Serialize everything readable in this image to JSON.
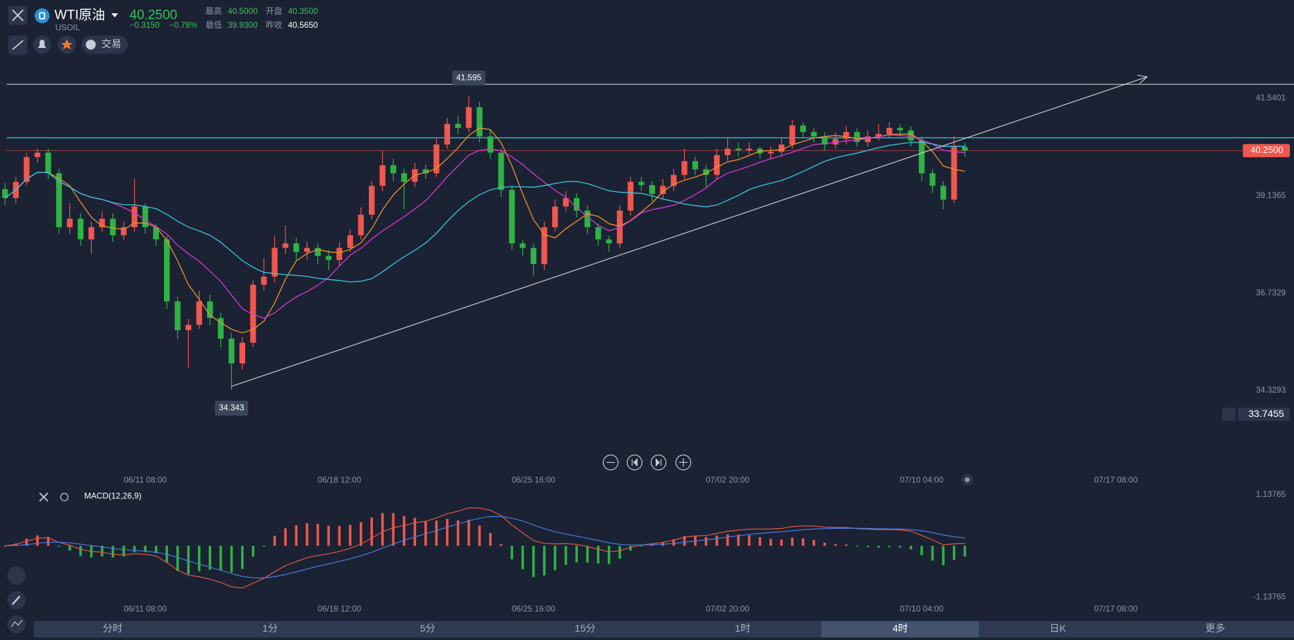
{
  "header": {
    "name": "WTI原油",
    "symbol": "USOIL",
    "price": "40.2500",
    "change": "−0.3150",
    "change_pct": "−0.78%",
    "stats": [
      {
        "label": "最高",
        "value": "40.5000"
      },
      {
        "label": "开盘",
        "value": "40.3500"
      },
      {
        "label": "最低",
        "value": "39.9300"
      },
      {
        "label": "昨收",
        "value": "40.5650"
      }
    ],
    "trade": "交易",
    "tabs": [
      "分时",
      "1分",
      "5分",
      "15分",
      "1时",
      "4时",
      "日K",
      "更多"
    ],
    "active_tab": 5
  },
  "chart_data": {
    "type": "candlestick",
    "candles": [
      [
        39.3,
        39.45,
        38.9,
        39.08
      ],
      [
        39.08,
        39.6,
        38.95,
        39.48
      ],
      [
        39.48,
        40.2,
        39.4,
        40.09
      ],
      [
        40.09,
        40.3,
        39.95,
        40.2
      ],
      [
        40.2,
        40.3,
        39.55,
        39.69
      ],
      [
        39.69,
        39.8,
        38.2,
        38.36
      ],
      [
        38.36,
        38.95,
        38.2,
        38.57
      ],
      [
        38.57,
        38.7,
        37.9,
        38.06
      ],
      [
        38.06,
        38.5,
        37.7,
        38.36
      ],
      [
        38.36,
        38.75,
        38.25,
        38.57
      ],
      [
        38.57,
        38.7,
        38.0,
        38.16
      ],
      [
        38.16,
        38.5,
        38.05,
        38.36
      ],
      [
        38.36,
        39.55,
        38.25,
        38.87
      ],
      [
        38.87,
        38.95,
        38.2,
        38.36
      ],
      [
        38.36,
        38.45,
        37.9,
        38.06
      ],
      [
        38.06,
        38.15,
        36.35,
        36.53
      ],
      [
        36.53,
        36.65,
        35.6,
        35.82
      ],
      [
        35.82,
        36.1,
        34.9,
        35.95
      ],
      [
        35.95,
        36.8,
        35.85,
        36.53
      ],
      [
        36.53,
        36.7,
        35.95,
        36.12
      ],
      [
        36.12,
        36.25,
        35.4,
        35.61
      ],
      [
        35.61,
        35.75,
        34.343,
        35.0
      ],
      [
        35.0,
        35.65,
        34.85,
        35.51
      ],
      [
        35.51,
        37.05,
        35.4,
        36.94
      ],
      [
        36.94,
        37.6,
        36.8,
        37.14
      ],
      [
        37.14,
        38.15,
        37.0,
        37.85
      ],
      [
        37.85,
        38.4,
        37.7,
        37.96
      ],
      [
        37.96,
        38.1,
        37.55,
        37.75
      ],
      [
        37.75,
        38.0,
        37.55,
        37.85
      ],
      [
        37.85,
        37.95,
        37.45,
        37.65
      ],
      [
        37.65,
        37.8,
        37.3,
        37.55
      ],
      [
        37.55,
        38.0,
        37.4,
        37.85
      ],
      [
        37.85,
        38.3,
        37.75,
        38.16
      ],
      [
        38.16,
        38.85,
        38.05,
        38.67
      ],
      [
        38.67,
        39.5,
        38.55,
        39.38
      ],
      [
        39.38,
        40.25,
        39.25,
        39.89
      ],
      [
        39.89,
        40.05,
        39.5,
        39.69
      ],
      [
        39.69,
        39.8,
        38.8,
        39.48
      ],
      [
        39.48,
        39.95,
        39.35,
        39.79
      ],
      [
        39.79,
        39.9,
        39.55,
        39.69
      ],
      [
        39.69,
        40.55,
        39.6,
        40.4
      ],
      [
        40.4,
        41.05,
        40.3,
        40.91
      ],
      [
        40.91,
        41.1,
        40.65,
        40.81
      ],
      [
        40.81,
        41.595,
        40.7,
        41.32
      ],
      [
        41.32,
        41.45,
        40.45,
        40.6
      ],
      [
        40.6,
        40.75,
        40.05,
        40.2
      ],
      [
        40.2,
        40.3,
        39.1,
        39.28
      ],
      [
        39.28,
        39.4,
        37.8,
        37.96
      ],
      [
        37.96,
        38.05,
        37.65,
        37.85
      ],
      [
        37.85,
        37.95,
        37.15,
        37.45
      ],
      [
        37.45,
        38.5,
        37.3,
        38.36
      ],
      [
        38.36,
        39.05,
        38.25,
        38.87
      ],
      [
        38.87,
        39.25,
        38.75,
        39.08
      ],
      [
        39.08,
        39.2,
        38.6,
        38.77
      ],
      [
        38.77,
        38.9,
        38.2,
        38.36
      ],
      [
        38.36,
        38.45,
        37.9,
        38.06
      ],
      [
        38.06,
        38.15,
        37.75,
        37.96
      ],
      [
        37.96,
        38.9,
        37.85,
        38.77
      ],
      [
        38.77,
        39.6,
        38.65,
        39.48
      ],
      [
        39.48,
        39.6,
        39.25,
        39.4
      ],
      [
        39.4,
        39.5,
        39.0,
        39.18
      ],
      [
        39.18,
        39.55,
        39.05,
        39.38
      ],
      [
        39.38,
        39.8,
        39.25,
        39.65
      ],
      [
        39.65,
        40.3,
        39.55,
        39.99
      ],
      [
        39.99,
        40.1,
        39.65,
        39.79
      ],
      [
        39.79,
        39.9,
        39.35,
        39.65
      ],
      [
        39.65,
        40.3,
        39.55,
        40.14
      ],
      [
        40.14,
        40.55,
        40.0,
        40.3
      ],
      [
        40.3,
        40.45,
        40.1,
        40.26
      ],
      [
        40.26,
        40.45,
        40.15,
        40.3
      ],
      [
        40.3,
        40.35,
        40.05,
        40.18
      ],
      [
        40.18,
        40.35,
        40.05,
        40.22
      ],
      [
        40.22,
        40.55,
        40.1,
        40.4
      ],
      [
        40.4,
        41.0,
        40.3,
        40.87
      ],
      [
        40.87,
        40.95,
        40.55,
        40.71
      ],
      [
        40.71,
        40.8,
        40.45,
        40.6
      ],
      [
        40.6,
        40.7,
        40.25,
        40.4
      ],
      [
        40.4,
        40.7,
        40.3,
        40.54
      ],
      [
        40.54,
        40.85,
        40.4,
        40.71
      ],
      [
        40.71,
        40.8,
        40.35,
        40.46
      ],
      [
        40.46,
        40.75,
        40.35,
        40.6
      ],
      [
        40.6,
        40.9,
        40.5,
        40.66
      ],
      [
        40.66,
        40.95,
        40.55,
        40.81
      ],
      [
        40.81,
        40.9,
        40.6,
        40.75
      ],
      [
        40.75,
        40.85,
        40.35,
        40.5
      ],
      [
        40.5,
        40.6,
        39.5,
        39.69
      ],
      [
        39.69,
        39.8,
        39.2,
        39.38
      ],
      [
        39.38,
        39.5,
        38.8,
        39.04
      ],
      [
        39.04,
        40.6,
        38.95,
        40.34
      ],
      [
        40.34,
        40.45,
        40.1,
        40.25
      ]
    ],
    "colors": {
      "up": "#f0574e",
      "down": "#2fb344",
      "ma": [
        "#f0922b",
        "#d63ad6",
        "#3cc6dc"
      ]
    },
    "xlim": [
      -0.47,
      114.7
    ],
    "xticks": [
      {
        "value": 13,
        "label": "06/11 08:00"
      },
      {
        "value": 31,
        "label": "06/18 12:00"
      },
      {
        "value": 49,
        "label": "06/25 16:00"
      },
      {
        "value": 67,
        "label": "07/02 20:00"
      },
      {
        "value": 85,
        "label": "07/10 04:00"
      },
      {
        "value": 103,
        "label": "07/17 08:00"
      }
    ],
    "ylim": [
      32.3534,
      42.2327
    ],
    "yticks": [
      41.5401,
      39.1365,
      36.7329,
      34.3293
    ],
    "last_price": {
      "value": 40.25,
      "label": "40.2500"
    },
    "alert": 33.7455,
    "horizontal_lines": [
      41.886,
      40.565
    ],
    "annotations": [
      {
        "index": 43,
        "value": 41.595
      },
      {
        "index": 21,
        "value": 34.343
      }
    ],
    "indicator": {
      "name": "MACD(12,26,9)",
      "ylim": [
        -1.266,
        1.303
      ],
      "yticks": [
        1.13765,
        -1.13765
      ]
    }
  }
}
